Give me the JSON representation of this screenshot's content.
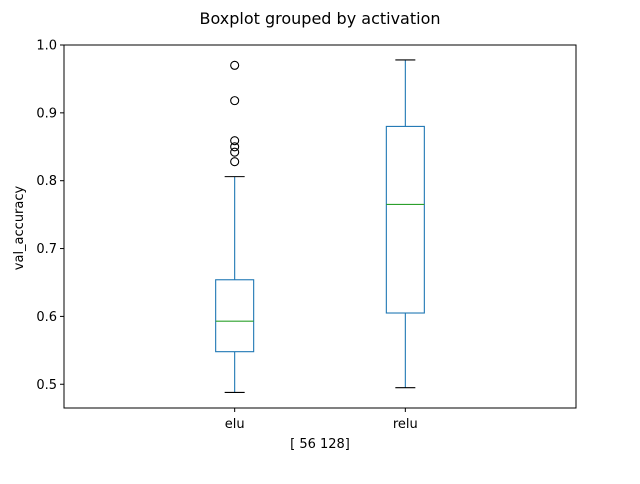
{
  "chart_data": {
    "type": "boxplot",
    "title": "Boxplot grouped by activation",
    "xlabel": "[ 56 128]",
    "ylabel": "val_accuracy",
    "ylim": [
      0.465,
      1.0
    ],
    "yticks": [
      0.5,
      0.6,
      0.7,
      0.8,
      0.9,
      1.0
    ],
    "ytick_labels": [
      "0.5",
      "0.6",
      "0.7",
      "0.8",
      "0.9",
      "1.0"
    ],
    "grid": false,
    "categories": [
      "elu",
      "relu"
    ],
    "boxes": [
      {
        "name": "elu",
        "whisker_low": 0.488,
        "q1": 0.548,
        "median": 0.593,
        "q3": 0.654,
        "whisker_high": 0.806,
        "outliers": [
          0.828,
          0.842,
          0.85,
          0.859,
          0.918,
          0.97
        ]
      },
      {
        "name": "relu",
        "whisker_low": 0.495,
        "q1": 0.605,
        "median": 0.765,
        "q3": 0.88,
        "whisker_high": 0.978,
        "outliers": []
      }
    ],
    "colors": {
      "box": "#1f77b4",
      "median": "#2ca02c",
      "outlier": "#000000",
      "axis": "#000000"
    }
  }
}
